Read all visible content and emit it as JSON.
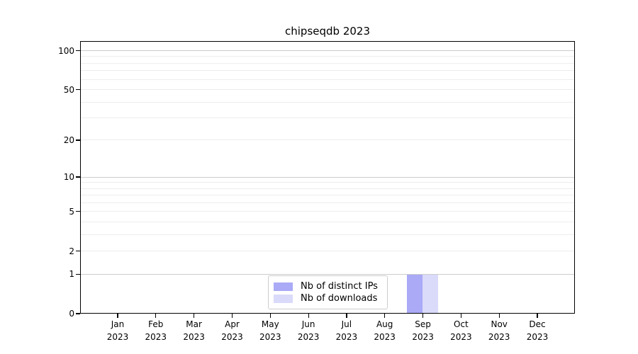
{
  "chart_data": {
    "type": "bar",
    "title": "chipseqdb 2023",
    "categories": [
      "Jan",
      "Feb",
      "Mar",
      "Apr",
      "May",
      "Jun",
      "Jul",
      "Aug",
      "Sep",
      "Oct",
      "Nov",
      "Dec"
    ],
    "category_year_label": "2023",
    "series": [
      {
        "name": "Nb of distinct IPs",
        "color": "#aaaaf7",
        "values": [
          0,
          0,
          0,
          0,
          0,
          0,
          0,
          0,
          1,
          0,
          0,
          0
        ]
      },
      {
        "name": "Nb of downloads",
        "color": "#dadafa",
        "values": [
          0,
          0,
          0,
          0,
          0,
          0,
          0,
          0,
          1,
          0,
          0,
          0
        ]
      }
    ],
    "xlabel": "",
    "ylabel": "",
    "y_axis": {
      "scale": "log1p",
      "tick_values": [
        0,
        1,
        2,
        5,
        10,
        20,
        50,
        100
      ],
      "emphasized_gridlines": [
        1,
        10,
        100
      ],
      "minor_gridlines": [
        3,
        4,
        6,
        7,
        8,
        9,
        30,
        40,
        60,
        70,
        80,
        90
      ],
      "ylim": [
        0,
        118
      ]
    },
    "grid": true,
    "legend_position": "lower center"
  },
  "colors": {
    "background": "#ffffff",
    "spine": "#000000",
    "grid_emphasized": "#cccccc",
    "grid_minor": "#ededed",
    "legend_border": "#cccccc",
    "text": "#000000"
  }
}
